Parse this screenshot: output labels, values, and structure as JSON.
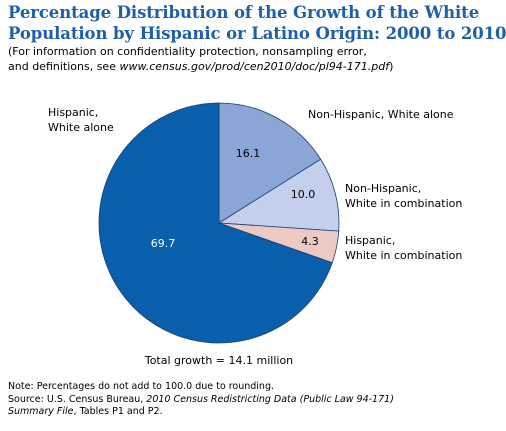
{
  "title_line1": "Percentage Distribution of the Growth of the White",
  "title_line2": "Population by Hispanic or Latino Origin: 2000 to 2010",
  "subtitle_line1": "(For information on confidentiality protection, nonsampling error,",
  "subtitle_line2_prefix": "and definitions, see ",
  "subtitle_line2_url": "www.census.gov/prod/cen2010/doc/pl94-171.pdf",
  "subtitle_line2_suffix": ")",
  "chart_data": {
    "type": "pie",
    "slices": [
      {
        "label_lines": [
          "Non-Hispanic, White alone"
        ],
        "value": 16.1,
        "value_label": "16.1",
        "color": "#8aa5d6"
      },
      {
        "label_lines": [
          "Non-Hispanic,",
          "White in combination"
        ],
        "value": 10.0,
        "value_label": "10.0",
        "color": "#c3cfec"
      },
      {
        "label_lines": [
          "Hispanic,",
          "White in combination"
        ],
        "value": 4.3,
        "value_label": "4.3",
        "color": "#edc9c3"
      },
      {
        "label_lines": [
          "Hispanic,",
          "White alone"
        ],
        "value": 69.7,
        "value_label": "69.7",
        "color": "#0a5fad"
      }
    ],
    "caption": "Total growth = 14.1 million"
  },
  "note_line1": "Note: Percentages do not add to 100.0 due to rounding.",
  "source_line2_prefix": "Source: U.S. Census Bureau, ",
  "source_line2_italic": "2010 Census Redistricting Data (Public Law 94-171)",
  "source_line3_italic": "Summary File",
  "source_line3_suffix": ", Tables P1 and P2."
}
